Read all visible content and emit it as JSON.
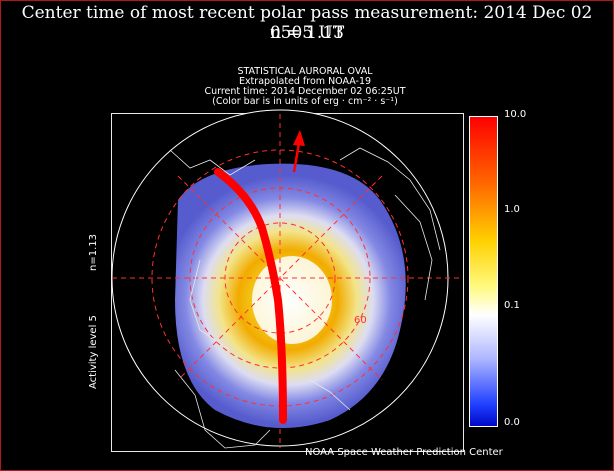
{
  "title_line1": "Center time of most recent polar pass measurement: 2014 Dec 02 0505 UT",
  "title_line2": "n = 1.13",
  "header": {
    "line1": "STATISTICAL AURORAL OVAL",
    "line2": "Extrapolated from NOAA-19",
    "line3": "Current time: 2014 December 02 06:25UT",
    "line4": "(Color bar is in units of erg · cm⁻² · s⁻¹)"
  },
  "side_label_n": "n=1.13",
  "side_label_activity": "Activity level 5",
  "latitude_label": "60",
  "colorbar": {
    "labels": [
      "10.0",
      "1.0",
      "0.1",
      "0.0"
    ]
  },
  "credit": "NOAA Space Weather Prediction Center",
  "colors": {
    "frame": "#b01818",
    "line": "#ff0000",
    "grid": "#ff3030"
  }
}
